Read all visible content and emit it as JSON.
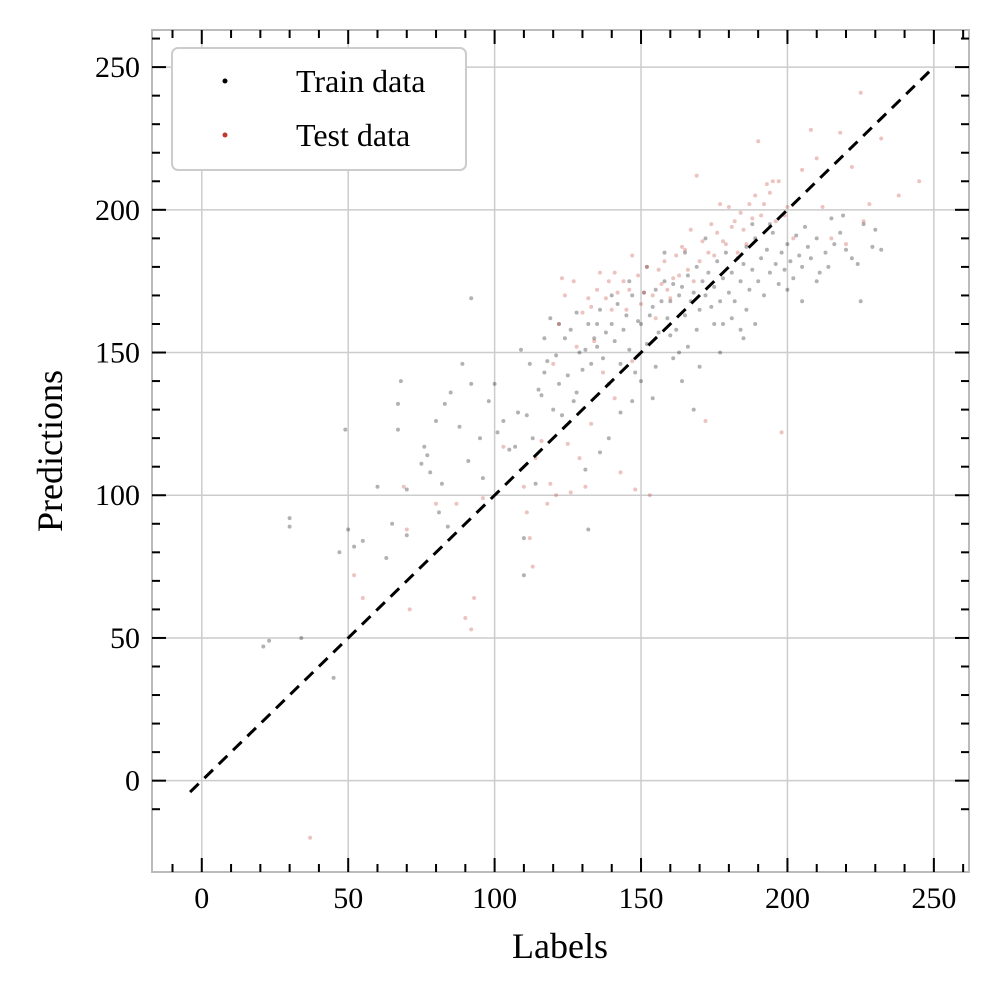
{
  "chart_data": {
    "type": "scatter",
    "title": "",
    "xlabel": "Labels",
    "ylabel": "Predictions",
    "xlim": [
      -17,
      262
    ],
    "ylim": [
      -32,
      263
    ],
    "xticks": [
      0,
      50,
      100,
      150,
      200,
      250
    ],
    "yticks": [
      0,
      50,
      100,
      150,
      200,
      250
    ],
    "tick_labels_x": [
      "0",
      "50",
      "100",
      "150",
      "200",
      "250"
    ],
    "tick_labels_y": [
      "0",
      "50",
      "100",
      "150",
      "200",
      "250"
    ],
    "grid": true,
    "legend_position": "upper left",
    "reference_line": {
      "style": "dashed",
      "color": "#000000",
      "from": [
        -4,
        -4
      ],
      "to": [
        249,
        249
      ]
    },
    "series": [
      {
        "name": "Train data",
        "color": "#000000",
        "marker_note": "semi-transparent small dots",
        "points": [
          [
            21,
            47
          ],
          [
            23,
            49
          ],
          [
            30,
            92
          ],
          [
            30,
            89
          ],
          [
            34,
            50
          ],
          [
            45,
            36
          ],
          [
            47,
            80
          ],
          [
            49,
            123
          ],
          [
            50,
            88
          ],
          [
            52,
            82
          ],
          [
            55,
            84
          ],
          [
            60,
            103
          ],
          [
            63,
            78
          ],
          [
            65,
            90
          ],
          [
            67,
            123
          ],
          [
            67,
            132
          ],
          [
            68,
            140
          ],
          [
            70,
            102
          ],
          [
            70,
            86
          ],
          [
            75,
            111
          ],
          [
            76,
            117
          ],
          [
            77,
            114
          ],
          [
            78,
            108
          ],
          [
            80,
            126
          ],
          [
            81,
            94
          ],
          [
            82,
            104
          ],
          [
            83,
            132
          ],
          [
            84,
            89
          ],
          [
            85,
            136
          ],
          [
            88,
            124
          ],
          [
            89,
            146
          ],
          [
            91,
            112
          ],
          [
            92,
            139
          ],
          [
            92,
            169
          ],
          [
            95,
            120
          ],
          [
            96,
            106
          ],
          [
            98,
            133
          ],
          [
            100,
            139
          ],
          [
            101,
            122
          ],
          [
            103,
            126
          ],
          [
            105,
            116
          ],
          [
            107,
            117
          ],
          [
            108,
            129
          ],
          [
            109,
            151
          ],
          [
            110,
            85
          ],
          [
            110,
            72
          ],
          [
            111,
            128
          ],
          [
            112,
            146
          ],
          [
            113,
            120
          ],
          [
            114,
            104
          ],
          [
            115,
            137
          ],
          [
            116,
            135
          ],
          [
            117,
            143
          ],
          [
            118,
            147
          ],
          [
            119,
            162
          ],
          [
            120,
            130
          ],
          [
            121,
            149
          ],
          [
            122,
            139
          ],
          [
            123,
            128
          ],
          [
            124,
            155
          ],
          [
            125,
            142
          ],
          [
            126,
            158
          ],
          [
            127,
            133
          ],
          [
            128,
            136
          ],
          [
            129,
            150
          ],
          [
            130,
            144
          ],
          [
            131,
            151
          ],
          [
            132,
            160
          ],
          [
            132,
            88
          ],
          [
            133,
            146
          ],
          [
            134,
            155
          ],
          [
            135,
            152
          ],
          [
            136,
            165
          ],
          [
            137,
            148
          ],
          [
            138,
            157
          ],
          [
            139,
            139
          ],
          [
            140,
            160
          ],
          [
            141,
            154
          ],
          [
            142,
            167
          ],
          [
            143,
            146
          ],
          [
            144,
            158
          ],
          [
            145,
            163
          ],
          [
            146,
            151
          ],
          [
            147,
            170
          ],
          [
            148,
            143
          ],
          [
            149,
            161
          ],
          [
            150,
            160
          ],
          [
            151,
            171
          ],
          [
            152,
            153
          ],
          [
            153,
            163
          ],
          [
            154,
            166
          ],
          [
            155,
            172
          ],
          [
            156,
            157
          ],
          [
            157,
            168
          ],
          [
            158,
            175
          ],
          [
            159,
            162
          ],
          [
            160,
            168
          ],
          [
            161,
            174
          ],
          [
            162,
            158
          ],
          [
            163,
            170
          ],
          [
            164,
            173
          ],
          [
            165,
            163
          ],
          [
            166,
            177
          ],
          [
            167,
            168
          ],
          [
            168,
            130
          ],
          [
            168,
            171
          ],
          [
            169,
            180
          ],
          [
            170,
            165
          ],
          [
            171,
            175
          ],
          [
            172,
            170
          ],
          [
            173,
            178
          ],
          [
            174,
            166
          ],
          [
            175,
            173
          ],
          [
            176,
            182
          ],
          [
            177,
            168
          ],
          [
            178,
            176
          ],
          [
            179,
            185
          ],
          [
            180,
            171
          ],
          [
            181,
            178
          ],
          [
            182,
            168
          ],
          [
            183,
            183
          ],
          [
            184,
            175
          ],
          [
            185,
            181
          ],
          [
            186,
            187
          ],
          [
            187,
            172
          ],
          [
            188,
            179
          ],
          [
            189,
            190
          ],
          [
            190,
            175
          ],
          [
            191,
            183
          ],
          [
            192,
            170
          ],
          [
            193,
            186
          ],
          [
            194,
            178
          ],
          [
            195,
            192
          ],
          [
            196,
            181
          ],
          [
            197,
            174
          ],
          [
            198,
            185
          ],
          [
            199,
            179
          ],
          [
            200,
            188
          ],
          [
            201,
            182
          ],
          [
            202,
            176
          ],
          [
            203,
            191
          ],
          [
            204,
            184
          ],
          [
            205,
            180
          ],
          [
            206,
            194
          ],
          [
            207,
            187
          ],
          [
            208,
            183
          ],
          [
            210,
            190
          ],
          [
            211,
            178
          ],
          [
            213,
            185
          ],
          [
            215,
            197
          ],
          [
            216,
            188
          ],
          [
            218,
            192
          ],
          [
            220,
            186
          ],
          [
            222,
            183
          ],
          [
            224,
            181
          ],
          [
            225,
            168
          ],
          [
            226,
            195
          ],
          [
            229,
            187
          ],
          [
            230,
            193
          ],
          [
            232,
            186
          ],
          [
            146,
            175
          ],
          [
            152,
            180
          ],
          [
            158,
            185
          ],
          [
            165,
            185
          ],
          [
            172,
            190
          ],
          [
            175,
            160
          ],
          [
            181,
            162
          ],
          [
            184,
            158
          ],
          [
            188,
            195
          ],
          [
            194,
            195
          ],
          [
            160,
            156
          ],
          [
            163,
            150
          ],
          [
            169,
            158
          ],
          [
            178,
            160
          ],
          [
            186,
            165
          ],
          [
            140,
            170
          ],
          [
            135,
            160
          ],
          [
            128,
            164
          ],
          [
            122,
            160
          ],
          [
            117,
            155
          ],
          [
            147,
            133
          ],
          [
            143,
            129
          ],
          [
            139,
            120
          ],
          [
            136,
            115
          ],
          [
            131,
            109
          ],
          [
            150,
            140
          ],
          [
            155,
            145
          ],
          [
            161,
            148
          ],
          [
            166,
            152
          ],
          [
            154,
            134
          ],
          [
            200,
            172
          ],
          [
            205,
            168
          ],
          [
            210,
            175
          ],
          [
            214,
            180
          ],
          [
            219,
            198
          ],
          [
            189,
            160
          ],
          [
            185,
            155
          ],
          [
            177,
            150
          ],
          [
            170,
            145
          ],
          [
            164,
            140
          ]
        ]
      },
      {
        "name": "Test data",
        "color": "#c0392b",
        "marker_note": "semi-transparent small dots",
        "points": [
          [
            37,
            -20
          ],
          [
            52,
            72
          ],
          [
            55,
            64
          ],
          [
            69,
            103
          ],
          [
            70,
            88
          ],
          [
            71,
            60
          ],
          [
            80,
            97
          ],
          [
            87,
            97
          ],
          [
            90,
            57
          ],
          [
            92,
            53
          ],
          [
            93,
            64
          ],
          [
            96,
            99
          ],
          [
            103,
            117
          ],
          [
            110,
            103
          ],
          [
            111,
            94
          ],
          [
            112,
            85
          ],
          [
            113,
            75
          ],
          [
            114,
            113
          ],
          [
            116,
            119
          ],
          [
            118,
            97
          ],
          [
            119,
            104
          ],
          [
            120,
            146
          ],
          [
            121,
            100
          ],
          [
            122,
            160
          ],
          [
            123,
            176
          ],
          [
            124,
            170
          ],
          [
            125,
            118
          ],
          [
            126,
            101
          ],
          [
            127,
            175
          ],
          [
            128,
            152
          ],
          [
            129,
            113
          ],
          [
            130,
            164
          ],
          [
            131,
            103
          ],
          [
            132,
            169
          ],
          [
            133,
            166
          ],
          [
            134,
            154
          ],
          [
            135,
            172
          ],
          [
            136,
            178
          ],
          [
            137,
            143
          ],
          [
            138,
            169
          ],
          [
            139,
            175
          ],
          [
            140,
            165
          ],
          [
            141,
            178
          ],
          [
            142,
            171
          ],
          [
            143,
            108
          ],
          [
            144,
            175
          ],
          [
            145,
            165
          ],
          [
            146,
            172
          ],
          [
            147,
            184
          ],
          [
            148,
            102
          ],
          [
            149,
            177
          ],
          [
            150,
            167
          ],
          [
            151,
            171
          ],
          [
            152,
            180
          ],
          [
            153,
            100
          ],
          [
            154,
            170
          ],
          [
            155,
            162
          ],
          [
            156,
            179
          ],
          [
            157,
            174
          ],
          [
            158,
            182
          ],
          [
            159,
            172
          ],
          [
            160,
            169
          ],
          [
            161,
            176
          ],
          [
            162,
            184
          ],
          [
            163,
            177
          ],
          [
            164,
            187
          ],
          [
            165,
            186
          ],
          [
            166,
            179
          ],
          [
            167,
            193
          ],
          [
            168,
            175
          ],
          [
            169,
            212
          ],
          [
            170,
            182
          ],
          [
            171,
            189
          ],
          [
            172,
            126
          ],
          [
            173,
            185
          ],
          [
            174,
            195
          ],
          [
            175,
            184
          ],
          [
            176,
            192
          ],
          [
            177,
            202
          ],
          [
            178,
            189
          ],
          [
            179,
            188
          ],
          [
            180,
            201
          ],
          [
            181,
            194
          ],
          [
            182,
            196
          ],
          [
            183,
            185
          ],
          [
            184,
            199
          ],
          [
            185,
            193
          ],
          [
            186,
            188
          ],
          [
            187,
            202
          ],
          [
            188,
            197
          ],
          [
            189,
            205
          ],
          [
            190,
            224
          ],
          [
            191,
            198
          ],
          [
            192,
            202
          ],
          [
            193,
            209
          ],
          [
            194,
            206
          ],
          [
            195,
            210
          ],
          [
            196,
            196
          ],
          [
            197,
            210
          ],
          [
            198,
            122
          ],
          [
            199,
            198
          ],
          [
            200,
            201
          ],
          [
            202,
            190
          ],
          [
            205,
            214
          ],
          [
            208,
            228
          ],
          [
            210,
            218
          ],
          [
            212,
            201
          ],
          [
            215,
            190
          ],
          [
            218,
            227
          ],
          [
            220,
            188
          ],
          [
            222,
            215
          ],
          [
            225,
            241
          ],
          [
            226,
            196
          ],
          [
            228,
            202
          ],
          [
            232,
            225
          ],
          [
            238,
            205
          ],
          [
            245,
            210
          ],
          [
            133,
            125
          ],
          [
            141,
            134
          ],
          [
            147,
            147
          ]
        ]
      }
    ]
  }
}
